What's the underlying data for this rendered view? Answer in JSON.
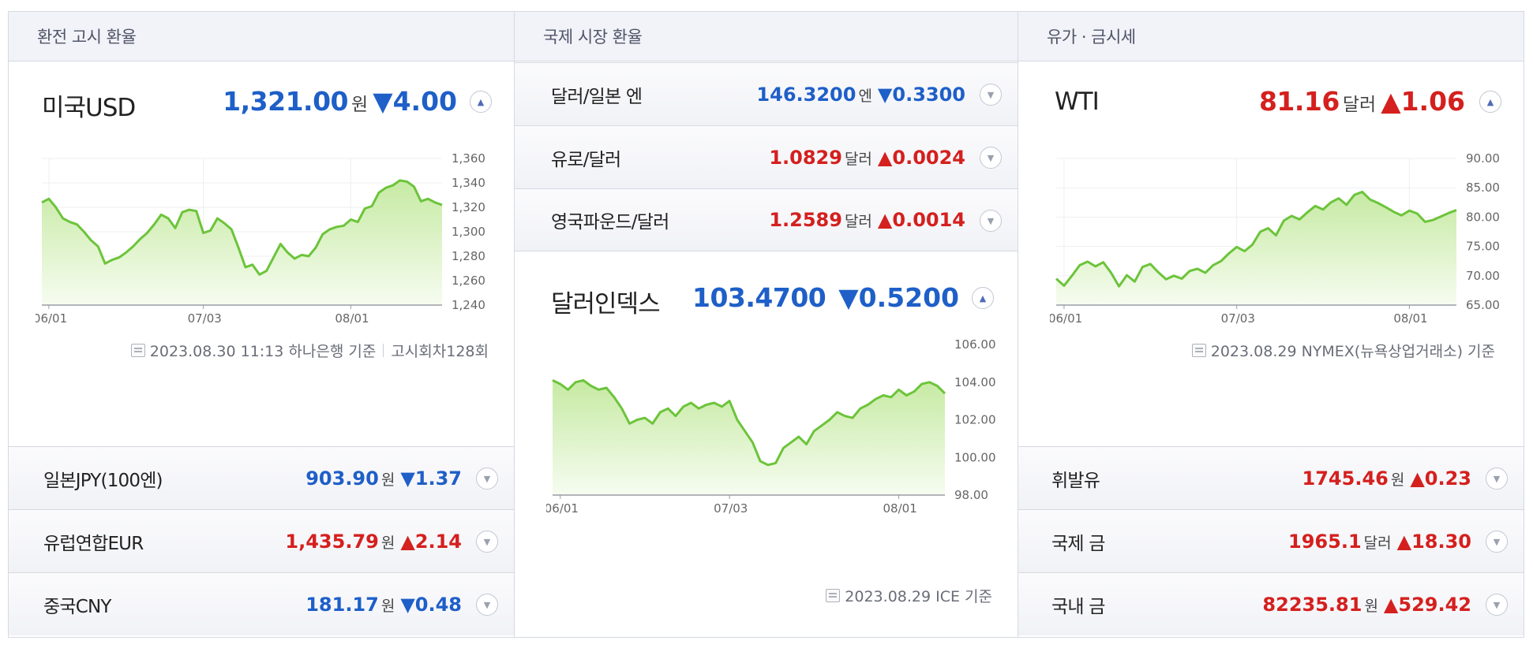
{
  "panels": {
    "exchange": {
      "header": "환전 고시 환율",
      "main": {
        "title": "미국USD",
        "value": "1,321.00",
        "unit": "원",
        "change": "▼4.00",
        "direction": "down"
      },
      "footnote": {
        "date": "2023.08.30 11:13 하나은행 기준",
        "round": "고시회차128회"
      },
      "rows": [
        {
          "label": "일본JPY(100엔)",
          "value": "903.90",
          "unit": "원",
          "change": "▼1.37",
          "direction": "down"
        },
        {
          "label": "유럽연합EUR",
          "value": "1,435.79",
          "unit": "원",
          "change": "▲2.14",
          "direction": "up"
        },
        {
          "label": "중국CNY",
          "value": "181.17",
          "unit": "원",
          "change": "▼0.48",
          "direction": "down"
        }
      ]
    },
    "intl": {
      "header": "국제 시장 환율",
      "rows": [
        {
          "label": "달러/일본 엔",
          "value": "146.3200",
          "unit": "엔",
          "change": "▼0.3300",
          "direction": "down"
        },
        {
          "label": "유로/달러",
          "value": "1.0829",
          "unit": "달러",
          "change": "▲0.0024",
          "direction": "up"
        },
        {
          "label": "영국파운드/달러",
          "value": "1.2589",
          "unit": "달러",
          "change": "▲0.0014",
          "direction": "up"
        }
      ],
      "main": {
        "title": "달러인덱스",
        "value": "103.4700",
        "unit": "",
        "change": "▼0.5200",
        "direction": "down"
      },
      "footnote": {
        "date": "2023.08.29 ICE 기준"
      }
    },
    "oil": {
      "header": "유가 · 금시세",
      "main": {
        "title": "WTI",
        "value": "81.16",
        "unit": "달러",
        "change": "▲1.06",
        "direction": "up"
      },
      "footnote": {
        "date": "2023.08.29 NYMEX(뉴욕상업거래소) 기준"
      },
      "rows": [
        {
          "label": "휘발유",
          "value": "1745.46",
          "unit": "원",
          "change": "▲0.23",
          "direction": "up"
        },
        {
          "label": "국제 금",
          "value": "1965.1",
          "unit": "달러",
          "change": "▲18.30",
          "direction": "up"
        },
        {
          "label": "국내 금",
          "value": "82235.81",
          "unit": "원",
          "change": "▲529.42",
          "direction": "up"
        }
      ]
    }
  },
  "colors": {
    "up": "#d4201e",
    "down": "#1e5fc8",
    "line": "#6cc43a",
    "area_top": "#c6eaa3",
    "area_bottom": "#f6fcf0"
  },
  "icons": {
    "expand": "chevron-up-icon",
    "row": "chevron-down-icon",
    "footnote": "calendar-icon"
  },
  "chart_data": [
    {
      "type": "area",
      "name": "usd-krw",
      "xticks": [
        "06/01",
        "07/03",
        "08/01"
      ],
      "xtick_index": [
        1,
        23,
        44
      ],
      "yticks": [
        "1,360",
        "1,340",
        "1,320",
        "1,300",
        "1,280",
        "1,260",
        "1,240"
      ],
      "ylim": [
        1240,
        1360
      ],
      "grid": true,
      "values": [
        1324,
        1327,
        1320,
        1311,
        1308,
        1306,
        1300,
        1293,
        1288,
        1274,
        1277,
        1279,
        1283,
        1288,
        1294,
        1299,
        1306,
        1314,
        1311,
        1303,
        1316,
        1318,
        1317,
        1299,
        1301,
        1311,
        1307,
        1302,
        1287,
        1271,
        1273,
        1265,
        1268,
        1279,
        1290,
        1283,
        1278,
        1281,
        1280,
        1287,
        1298,
        1302,
        1304,
        1305,
        1310,
        1308,
        1319,
        1321,
        1332,
        1336,
        1338,
        1342,
        1341,
        1337,
        1325,
        1327,
        1324,
        1322
      ]
    },
    {
      "type": "area",
      "name": "dollar-index",
      "xticks": [
        "06/01",
        "07/03",
        "08/01"
      ],
      "xtick_index": [
        1,
        23,
        45
      ],
      "yticks": [
        "106.00",
        "104.00",
        "102.00",
        "100.00",
        "98.00"
      ],
      "ylim": [
        98,
        106
      ],
      "grid": false,
      "values": [
        104.1,
        103.9,
        103.6,
        104.0,
        104.1,
        103.8,
        103.6,
        103.7,
        103.2,
        102.6,
        101.8,
        102.0,
        102.1,
        101.8,
        102.4,
        102.6,
        102.2,
        102.7,
        102.9,
        102.6,
        102.8,
        102.9,
        102.7,
        103.0,
        102.0,
        101.4,
        100.8,
        99.8,
        99.6,
        99.7,
        100.5,
        100.8,
        101.1,
        100.7,
        101.4,
        101.7,
        102.0,
        102.4,
        102.2,
        102.1,
        102.6,
        102.8,
        103.1,
        103.3,
        103.2,
        103.6,
        103.3,
        103.5,
        103.9,
        104.0,
        103.8,
        103.4
      ]
    },
    {
      "type": "area",
      "name": "wti",
      "xticks": [
        "06/01",
        "07/03",
        "08/01"
      ],
      "xtick_index": [
        1,
        23,
        45
      ],
      "yticks": [
        "90.00",
        "85.00",
        "80.00",
        "75.00",
        "70.00",
        "65.00"
      ],
      "ylim": [
        65,
        90
      ],
      "grid": true,
      "values": [
        69.5,
        68.3,
        70.0,
        71.8,
        72.4,
        71.6,
        72.3,
        70.5,
        68.2,
        70.1,
        69.0,
        71.5,
        72.0,
        70.6,
        69.4,
        70.0,
        69.5,
        70.8,
        71.2,
        70.5,
        71.8,
        72.5,
        73.8,
        74.9,
        74.2,
        75.3,
        77.5,
        78.1,
        76.9,
        79.4,
        80.2,
        79.6,
        80.8,
        81.9,
        81.3,
        82.5,
        83.2,
        82.1,
        83.8,
        84.3,
        83.0,
        82.4,
        81.7,
        80.9,
        80.3,
        81.1,
        80.6,
        79.2,
        79.5,
        80.1,
        80.7,
        81.2
      ]
    }
  ]
}
